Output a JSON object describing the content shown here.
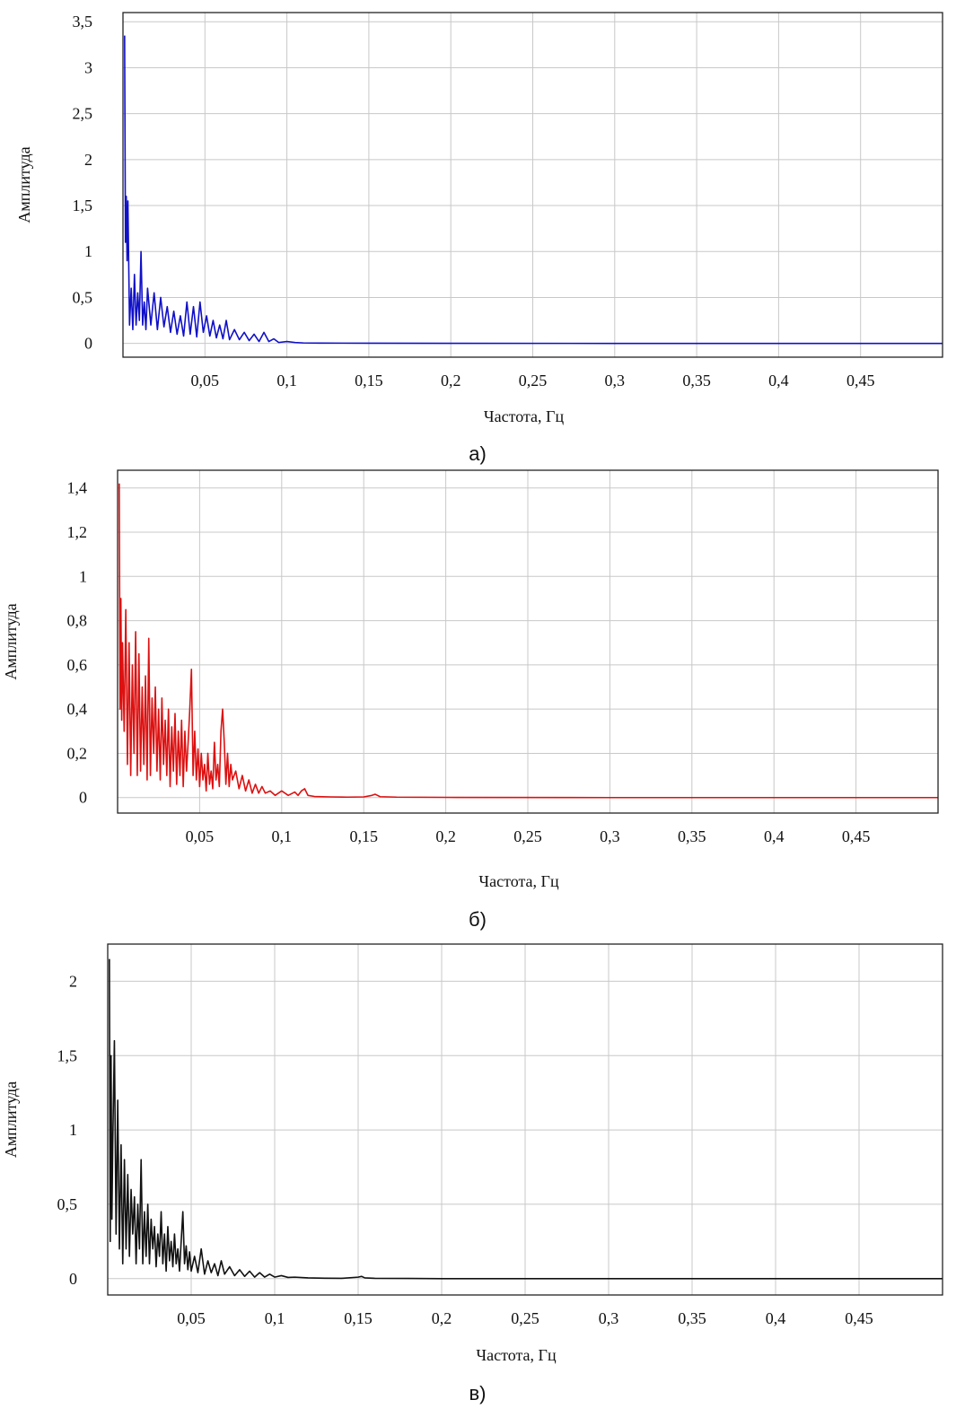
{
  "chart_data": [
    {
      "type": "line",
      "caption": "а)",
      "xlabel": "Частота, Гц",
      "ylabel": "Амплитуда",
      "xlim": [
        0,
        0.5
      ],
      "ylim": [
        -0.15,
        3.6
      ],
      "x_ticks": [
        0.05,
        0.1,
        0.15,
        0.2,
        0.25,
        0.3,
        0.35,
        0.4,
        0.45
      ],
      "x_tick_labels": [
        "0,05",
        "0,1",
        "0,15",
        "0,2",
        "0,25",
        "0,3",
        "0,35",
        "0,4",
        "0,45"
      ],
      "y_ticks": [
        0,
        0.5,
        1,
        1.5,
        2,
        2.5,
        3,
        3.5
      ],
      "y_tick_labels": [
        "0",
        "0,5",
        "1",
        "1,5",
        "2",
        "2,5",
        "3",
        "3,5"
      ],
      "grid": true,
      "series": [
        {
          "color": "#1010c8",
          "x": [
            0.001,
            0.0015,
            0.002,
            0.0025,
            0.003,
            0.004,
            0.005,
            0.006,
            0.007,
            0.008,
            0.009,
            0.01,
            0.011,
            0.012,
            0.013,
            0.014,
            0.015,
            0.017,
            0.019,
            0.021,
            0.023,
            0.025,
            0.027,
            0.029,
            0.031,
            0.033,
            0.035,
            0.037,
            0.039,
            0.041,
            0.043,
            0.045,
            0.047,
            0.049,
            0.051,
            0.053,
            0.055,
            0.057,
            0.059,
            0.061,
            0.063,
            0.065,
            0.068,
            0.071,
            0.074,
            0.077,
            0.08,
            0.083,
            0.086,
            0.089,
            0.092,
            0.095,
            0.1,
            0.105,
            0.11,
            0.12,
            0.15,
            0.2,
            0.3,
            0.4,
            0.5
          ],
          "y": [
            3.35,
            1.1,
            1.6,
            0.9,
            1.55,
            0.2,
            0.6,
            0.15,
            0.75,
            0.2,
            0.55,
            0.25,
            1.0,
            0.2,
            0.45,
            0.15,
            0.6,
            0.2,
            0.55,
            0.15,
            0.5,
            0.18,
            0.4,
            0.12,
            0.35,
            0.1,
            0.3,
            0.08,
            0.45,
            0.1,
            0.4,
            0.07,
            0.45,
            0.12,
            0.3,
            0.08,
            0.25,
            0.06,
            0.2,
            0.05,
            0.25,
            0.04,
            0.15,
            0.04,
            0.12,
            0.03,
            0.1,
            0.02,
            0.12,
            0.02,
            0.05,
            0.01,
            0.02,
            0.01,
            0.005,
            0.003,
            0.002,
            0.001,
            0.0,
            0.0,
            0.0
          ]
        }
      ]
    },
    {
      "type": "line",
      "caption": "б)",
      "xlabel": "Частота, Гц",
      "ylabel": "Амплитуда",
      "xlim": [
        0,
        0.5
      ],
      "ylim": [
        -0.07,
        1.48
      ],
      "x_ticks": [
        0.05,
        0.1,
        0.15,
        0.2,
        0.25,
        0.3,
        0.35,
        0.4,
        0.45
      ],
      "x_tick_labels": [
        "0,05",
        "0,1",
        "0,15",
        "0,2",
        "0,25",
        "0,3",
        "0,35",
        "0,4",
        "0,45"
      ],
      "y_ticks": [
        0,
        0.2,
        0.4,
        0.6,
        0.8,
        1,
        1.2,
        1.4
      ],
      "y_tick_labels": [
        "0",
        "0,2",
        "0,4",
        "0,6",
        "0,8",
        "1",
        "1,2",
        "1,4"
      ],
      "grid": true,
      "series": [
        {
          "color": "#dd1111",
          "x": [
            0.001,
            0.0015,
            0.002,
            0.0025,
            0.003,
            0.004,
            0.005,
            0.006,
            0.007,
            0.008,
            0.009,
            0.01,
            0.011,
            0.012,
            0.013,
            0.014,
            0.015,
            0.016,
            0.017,
            0.018,
            0.019,
            0.02,
            0.021,
            0.022,
            0.023,
            0.024,
            0.025,
            0.026,
            0.027,
            0.028,
            0.029,
            0.03,
            0.031,
            0.032,
            0.033,
            0.034,
            0.035,
            0.036,
            0.037,
            0.038,
            0.039,
            0.04,
            0.041,
            0.042,
            0.043,
            0.044,
            0.045,
            0.046,
            0.047,
            0.048,
            0.049,
            0.05,
            0.051,
            0.052,
            0.053,
            0.054,
            0.055,
            0.056,
            0.057,
            0.058,
            0.059,
            0.06,
            0.061,
            0.062,
            0.063,
            0.064,
            0.065,
            0.066,
            0.067,
            0.068,
            0.069,
            0.07,
            0.072,
            0.074,
            0.076,
            0.078,
            0.08,
            0.082,
            0.084,
            0.086,
            0.088,
            0.09,
            0.093,
            0.096,
            0.1,
            0.104,
            0.108,
            0.11,
            0.112,
            0.114,
            0.116,
            0.12,
            0.13,
            0.14,
            0.15,
            0.155,
            0.157,
            0.16,
            0.17,
            0.2,
            0.3,
            0.4,
            0.5
          ],
          "y": [
            1.42,
            0.4,
            0.9,
            0.35,
            0.7,
            0.3,
            0.85,
            0.15,
            0.7,
            0.1,
            0.6,
            0.2,
            0.75,
            0.1,
            0.65,
            0.12,
            0.5,
            0.15,
            0.55,
            0.08,
            0.72,
            0.1,
            0.45,
            0.2,
            0.5,
            0.12,
            0.4,
            0.08,
            0.45,
            0.15,
            0.35,
            0.1,
            0.4,
            0.05,
            0.32,
            0.12,
            0.38,
            0.06,
            0.3,
            0.1,
            0.35,
            0.05,
            0.3,
            0.12,
            0.25,
            0.4,
            0.58,
            0.1,
            0.3,
            0.08,
            0.22,
            0.05,
            0.2,
            0.08,
            0.15,
            0.03,
            0.2,
            0.06,
            0.12,
            0.04,
            0.25,
            0.08,
            0.15,
            0.05,
            0.3,
            0.4,
            0.25,
            0.06,
            0.2,
            0.05,
            0.15,
            0.08,
            0.12,
            0.04,
            0.1,
            0.03,
            0.08,
            0.02,
            0.06,
            0.02,
            0.05,
            0.02,
            0.03,
            0.01,
            0.03,
            0.01,
            0.025,
            0.01,
            0.03,
            0.04,
            0.01,
            0.005,
            0.003,
            0.002,
            0.003,
            0.01,
            0.015,
            0.004,
            0.002,
            0.001,
            0.0,
            0.0,
            0.0
          ]
        }
      ]
    },
    {
      "type": "line",
      "caption": "в)",
      "xlabel": "Частота, Гц",
      "ylabel": "Амплитуда",
      "xlim": [
        0,
        0.5
      ],
      "ylim": [
        -0.11,
        2.25
      ],
      "x_ticks": [
        0.05,
        0.1,
        0.15,
        0.2,
        0.25,
        0.3,
        0.35,
        0.4,
        0.45
      ],
      "x_tick_labels": [
        "0,05",
        "0,1",
        "0,15",
        "0,2",
        "0,25",
        "0,3",
        "0,35",
        "0,4",
        "0,45"
      ],
      "y_ticks": [
        0,
        0.5,
        1,
        1.5,
        2
      ],
      "y_tick_labels": [
        "0",
        "0,5",
        "1",
        "1,5",
        "2"
      ],
      "grid": true,
      "series": [
        {
          "color": "#111111",
          "x": [
            0.001,
            0.0015,
            0.002,
            0.0025,
            0.003,
            0.004,
            0.005,
            0.006,
            0.007,
            0.008,
            0.009,
            0.01,
            0.011,
            0.012,
            0.013,
            0.014,
            0.015,
            0.016,
            0.017,
            0.018,
            0.019,
            0.02,
            0.021,
            0.022,
            0.023,
            0.024,
            0.025,
            0.026,
            0.027,
            0.028,
            0.029,
            0.03,
            0.031,
            0.032,
            0.033,
            0.034,
            0.035,
            0.036,
            0.037,
            0.038,
            0.039,
            0.04,
            0.041,
            0.042,
            0.043,
            0.044,
            0.045,
            0.046,
            0.047,
            0.048,
            0.049,
            0.05,
            0.052,
            0.054,
            0.056,
            0.058,
            0.06,
            0.062,
            0.064,
            0.066,
            0.068,
            0.07,
            0.073,
            0.076,
            0.079,
            0.082,
            0.085,
            0.088,
            0.091,
            0.094,
            0.097,
            0.1,
            0.104,
            0.108,
            0.112,
            0.12,
            0.13,
            0.14,
            0.15,
            0.152,
            0.154,
            0.16,
            0.18,
            0.2,
            0.3,
            0.4,
            0.5
          ],
          "y": [
            2.15,
            0.25,
            1.5,
            0.4,
            0.9,
            1.6,
            0.3,
            1.2,
            0.2,
            0.9,
            0.1,
            0.8,
            0.2,
            0.7,
            0.15,
            0.6,
            0.3,
            0.55,
            0.1,
            0.5,
            0.2,
            0.8,
            0.1,
            0.45,
            0.15,
            0.5,
            0.1,
            0.4,
            0.2,
            0.35,
            0.08,
            0.3,
            0.15,
            0.45,
            0.1,
            0.3,
            0.05,
            0.35,
            0.12,
            0.25,
            0.08,
            0.3,
            0.1,
            0.2,
            0.05,
            0.25,
            0.45,
            0.1,
            0.22,
            0.06,
            0.18,
            0.05,
            0.15,
            0.04,
            0.2,
            0.03,
            0.12,
            0.04,
            0.1,
            0.02,
            0.12,
            0.03,
            0.08,
            0.02,
            0.06,
            0.015,
            0.05,
            0.01,
            0.04,
            0.01,
            0.03,
            0.01,
            0.02,
            0.008,
            0.01,
            0.005,
            0.003,
            0.002,
            0.01,
            0.015,
            0.005,
            0.002,
            0.001,
            0.0,
            0.0,
            0.0,
            0.0
          ]
        }
      ]
    }
  ]
}
